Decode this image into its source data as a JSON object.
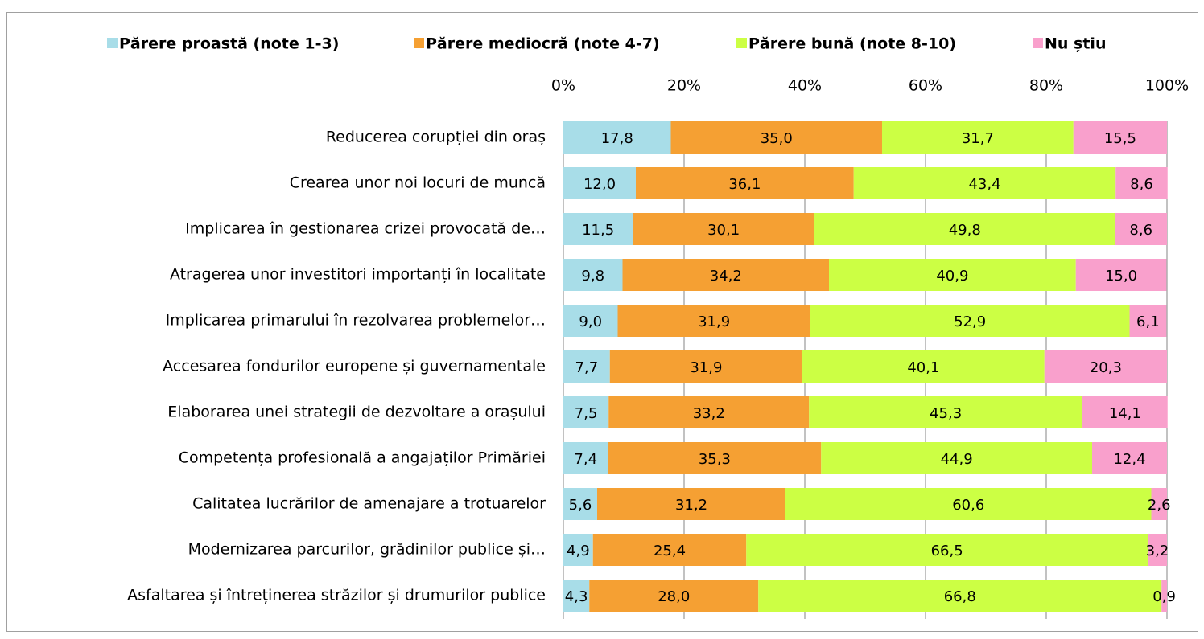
{
  "chart_data": {
    "type": "stacked-bar-horizontal",
    "categories": [
      "Reducerea corupției din oraș",
      "Crearea unor noi locuri de muncă",
      "Implicarea în gestionarea crizei provocată de…",
      "Atragerea unor investitori importanți în localitate",
      "Implicarea primarului în rezolvarea problemelor…",
      "Accesarea fondurilor europene și guvernamentale",
      "Elaborarea unei strategii de dezvoltare a orașului",
      "Competența profesională a angajaților Primăriei",
      "Calitatea lucrărilor de amenajare a trotuarelor",
      "Modernizarea parcurilor, grădinilor publice și…",
      "Asfaltarea și întreținerea străzilor și drumurilor publice"
    ],
    "series": [
      {
        "name": "Părere proastă (note 1-3)",
        "color": "#a8dde8",
        "values": [
          17.8,
          12.0,
          11.5,
          9.8,
          9.0,
          7.7,
          7.5,
          7.4,
          5.6,
          4.9,
          4.3
        ],
        "value_labels": [
          "17,8",
          "12,0",
          "11,5",
          "9,8",
          "9,0",
          "7,7",
          "7,5",
          "7,4",
          "5,6",
          "4,9",
          "4,3"
        ]
      },
      {
        "name": "Părere mediocră (note 4-7)",
        "color": "#f5a033",
        "values": [
          35.0,
          36.1,
          30.1,
          34.2,
          31.9,
          31.9,
          33.2,
          35.3,
          31.2,
          25.4,
          28.0
        ],
        "value_labels": [
          "35,0",
          "36,1",
          "30,1",
          "34,2",
          "31,9",
          "31,9",
          "33,2",
          "35,3",
          "31,2",
          "25,4",
          "28,0"
        ]
      },
      {
        "name": "Părere bună (note 8-10)",
        "color": "#ccff44",
        "values": [
          31.7,
          43.4,
          49.8,
          40.9,
          52.9,
          40.1,
          45.3,
          44.9,
          60.6,
          66.5,
          66.8
        ],
        "value_labels": [
          "31,7",
          "43,4",
          "49,8",
          "40,9",
          "52,9",
          "40,1",
          "45,3",
          "44,9",
          "60,6",
          "66,5",
          "66,8"
        ]
      },
      {
        "name": "Nu știu",
        "color": "#f9a0cc",
        "values": [
          15.5,
          8.6,
          8.6,
          15.0,
          6.1,
          20.3,
          14.1,
          12.4,
          2.6,
          3.2,
          0.9
        ],
        "value_labels": [
          "15,5",
          "8,6",
          "8,6",
          "15,0",
          "6,1",
          "20,3",
          "14,1",
          "12,4",
          "2,6",
          "3,2",
          "0,9"
        ]
      }
    ],
    "xlim": [
      0,
      100
    ],
    "xticks": [
      {
        "value": 0,
        "label": "0%"
      },
      {
        "value": 20,
        "label": "20%"
      },
      {
        "value": 40,
        "label": "40%"
      },
      {
        "value": 60,
        "label": "60%"
      },
      {
        "value": 80,
        "label": "80%"
      },
      {
        "value": 100,
        "label": "100%"
      }
    ],
    "grid": true,
    "legend": "top"
  }
}
